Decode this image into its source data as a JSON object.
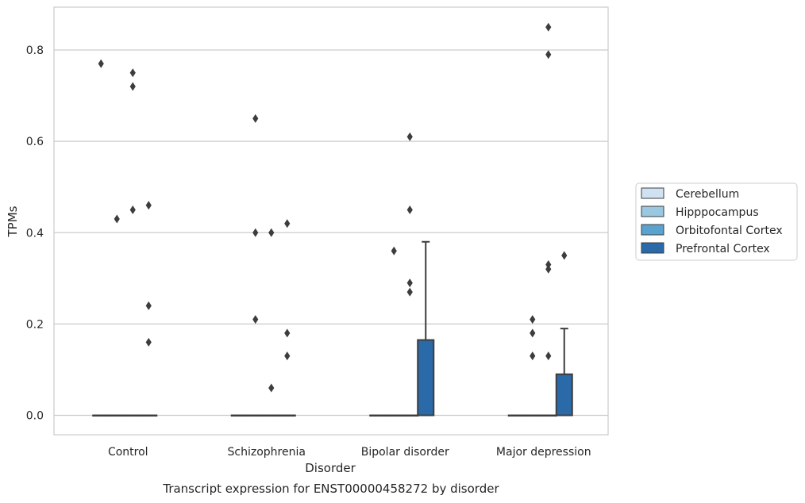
{
  "chart_data": {
    "type": "box",
    "xlabel": "Disorder",
    "ylabel": "TPMs",
    "caption": "Transcript expression for ENST00000458272 by disorder",
    "ylim": [
      -0.042,
      0.93
    ],
    "yticks": [
      "0.0",
      "0.2",
      "0.4",
      "0.6",
      "0.8"
    ],
    "ytick_values": [
      0.0,
      0.2,
      0.4,
      0.6,
      0.8
    ],
    "grid": "horizontal",
    "legend_position": "right",
    "categories": [
      "Control",
      "Schizophrenia",
      "Bipolar disorder",
      "Major depression"
    ],
    "series": [
      {
        "name": "Cerebellum",
        "color": "#d0e1f2",
        "boxes": [
          {
            "category": "Control",
            "q1": 0,
            "median": 0,
            "q3": 0,
            "whisker_low": 0,
            "whisker_high": 0,
            "outliers": [
              0.77
            ]
          },
          {
            "category": "Schizophrenia",
            "q1": 0,
            "median": 0,
            "q3": 0,
            "whisker_low": 0,
            "whisker_high": 0,
            "outliers": []
          },
          {
            "category": "Bipolar disorder",
            "q1": 0,
            "median": 0,
            "q3": 0,
            "whisker_low": 0,
            "whisker_high": 0,
            "outliers": []
          },
          {
            "category": "Major depression",
            "q1": 0,
            "median": 0,
            "q3": 0,
            "whisker_low": 0,
            "whisker_high": 0,
            "outliers": []
          }
        ]
      },
      {
        "name": "Hipppocampus",
        "color": "#9ac8e0",
        "boxes": [
          {
            "category": "Control",
            "q1": 0,
            "median": 0,
            "q3": 0,
            "whisker_low": 0,
            "whisker_high": 0,
            "outliers": [
              0.43
            ]
          },
          {
            "category": "Schizophrenia",
            "q1": 0,
            "median": 0,
            "q3": 0,
            "whisker_low": 0,
            "whisker_high": 0,
            "outliers": [
              0.65,
              0.4,
              0.21
            ]
          },
          {
            "category": "Bipolar disorder",
            "q1": 0,
            "median": 0,
            "q3": 0,
            "whisker_low": 0,
            "whisker_high": 0,
            "outliers": [
              0.36
            ]
          },
          {
            "category": "Major depression",
            "q1": 0,
            "median": 0,
            "q3": 0,
            "whisker_low": 0,
            "whisker_high": 0,
            "outliers": [
              0.21,
              0.18,
              0.13
            ]
          }
        ]
      },
      {
        "name": "Orbitofontal Cortex",
        "color": "#5ba3cf",
        "boxes": [
          {
            "category": "Control",
            "q1": 0,
            "median": 0,
            "q3": 0,
            "whisker_low": 0,
            "whisker_high": 0,
            "outliers": [
              0.75,
              0.72,
              0.45
            ]
          },
          {
            "category": "Schizophrenia",
            "q1": 0,
            "median": 0,
            "q3": 0,
            "whisker_low": 0,
            "whisker_high": 0,
            "outliers": [
              0.4,
              0.06
            ]
          },
          {
            "category": "Bipolar disorder",
            "q1": 0,
            "median": 0,
            "q3": 0,
            "whisker_low": 0,
            "whisker_high": 0,
            "outliers": [
              0.61,
              0.45,
              0.29,
              0.27
            ]
          },
          {
            "category": "Major depression",
            "q1": 0,
            "median": 0,
            "q3": 0,
            "whisker_low": 0,
            "whisker_high": 0,
            "outliers": [
              0.33,
              0.32,
              0.13,
              0.85,
              0.79
            ]
          }
        ]
      },
      {
        "name": "Prefrontal Cortex",
        "color": "#2a6aa8",
        "boxes": [
          {
            "category": "Control",
            "q1": 0,
            "median": 0,
            "q3": 0,
            "whisker_low": 0,
            "whisker_high": 0,
            "outliers": [
              0.46,
              0.24,
              0.16
            ]
          },
          {
            "category": "Schizophrenia",
            "q1": 0,
            "median": 0,
            "q3": 0,
            "whisker_low": 0,
            "whisker_high": 0,
            "outliers": [
              0.42,
              0.18,
              0.13
            ]
          },
          {
            "category": "Bipolar disorder",
            "q1": 0,
            "median": 0,
            "q3": 0.165,
            "whisker_low": 0,
            "whisker_high": 0.38,
            "outliers": []
          },
          {
            "category": "Major depression",
            "q1": 0,
            "median": 0,
            "q3": 0.09,
            "whisker_low": 0,
            "whisker_high": 0.19,
            "outliers": [
              0.35
            ]
          }
        ]
      }
    ]
  }
}
